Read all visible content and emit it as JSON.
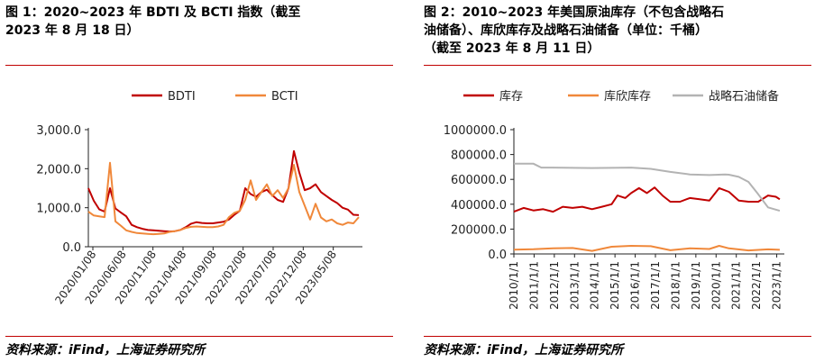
{
  "figures": [
    {
      "title": "图 1：2020~2023 年 BDTI 及 BCTI 指数（截至\n2023 年 8 月 18 日）",
      "source": "资料来源：iFind，上海证券研究所"
    },
    {
      "title": "图 2：2010~2023 年美国原油库存（不包含战略石\n油储备）、库欣库存及战略石油储备（单位：千桶）\n（截至 2023 年 8 月 11 日）",
      "source": "资料来源：iFind，上海证券研究所"
    }
  ],
  "chart_data": [
    {
      "type": "line",
      "legend_position": "top",
      "ylim": [
        0,
        3000
      ],
      "yticks": [
        "0.0",
        "1,000.0",
        "2,000.0",
        "3,000.0"
      ],
      "xticks": [
        "2020/01/08",
        "2020/06/08",
        "2020/11/08",
        "2021/04/08",
        "2021/09/08",
        "2022/02/08",
        "2022/07/08",
        "2022/12/08",
        "2023/05/08"
      ],
      "series": [
        {
          "name": "BDTI",
          "color": "#c00000",
          "points": [
            [
              0,
              1500
            ],
            [
              1,
              1180
            ],
            [
              2,
              960
            ],
            [
              3,
              900
            ],
            [
              4,
              1500
            ],
            [
              5,
              980
            ],
            [
              6,
              880
            ],
            [
              7,
              780
            ],
            [
              8,
              560
            ],
            [
              9,
              500
            ],
            [
              10,
              460
            ],
            [
              11,
              430
            ],
            [
              12,
              420
            ],
            [
              13,
              410
            ],
            [
              14,
              400
            ],
            [
              15,
              390
            ],
            [
              16,
              400
            ],
            [
              17,
              430
            ],
            [
              18,
              500
            ],
            [
              19,
              590
            ],
            [
              20,
              630
            ],
            [
              21,
              610
            ],
            [
              22,
              600
            ],
            [
              23,
              600
            ],
            [
              24,
              620
            ],
            [
              25,
              640
            ],
            [
              26,
              700
            ],
            [
              27,
              820
            ],
            [
              28,
              920
            ],
            [
              29,
              1500
            ],
            [
              30,
              1350
            ],
            [
              31,
              1280
            ],
            [
              32,
              1400
            ],
            [
              33,
              1460
            ],
            [
              34,
              1320
            ],
            [
              35,
              1200
            ],
            [
              36,
              1150
            ],
            [
              37,
              1500
            ],
            [
              38,
              2450
            ],
            [
              39,
              1900
            ],
            [
              40,
              1450
            ],
            [
              41,
              1500
            ],
            [
              42,
              1600
            ],
            [
              43,
              1400
            ],
            [
              44,
              1300
            ],
            [
              45,
              1200
            ],
            [
              46,
              1120
            ],
            [
              47,
              1000
            ],
            [
              48,
              950
            ],
            [
              49,
              820
            ],
            [
              50,
              810
            ]
          ]
        },
        {
          "name": "BCTI",
          "color": "#f0883a",
          "points": [
            [
              0,
              900
            ],
            [
              1,
              800
            ],
            [
              2,
              780
            ],
            [
              3,
              760
            ],
            [
              4,
              2150
            ],
            [
              5,
              650
            ],
            [
              6,
              540
            ],
            [
              7,
              420
            ],
            [
              8,
              380
            ],
            [
              9,
              350
            ],
            [
              10,
              340
            ],
            [
              11,
              330
            ],
            [
              12,
              320
            ],
            [
              13,
              330
            ],
            [
              14,
              340
            ],
            [
              15,
              380
            ],
            [
              16,
              400
            ],
            [
              17,
              430
            ],
            [
              18,
              480
            ],
            [
              19,
              510
            ],
            [
              20,
              520
            ],
            [
              21,
              510
            ],
            [
              22,
              500
            ],
            [
              23,
              500
            ],
            [
              24,
              520
            ],
            [
              25,
              560
            ],
            [
              26,
              760
            ],
            [
              27,
              870
            ],
            [
              28,
              920
            ],
            [
              29,
              1200
            ],
            [
              30,
              1700
            ],
            [
              31,
              1200
            ],
            [
              32,
              1400
            ],
            [
              33,
              1600
            ],
            [
              34,
              1300
            ],
            [
              35,
              1450
            ],
            [
              36,
              1250
            ],
            [
              37,
              1500
            ],
            [
              38,
              2100
            ],
            [
              39,
              1400
            ],
            [
              40,
              1050
            ],
            [
              41,
              700
            ],
            [
              42,
              1100
            ],
            [
              43,
              750
            ],
            [
              44,
              650
            ],
            [
              45,
              700
            ],
            [
              46,
              600
            ],
            [
              47,
              560
            ],
            [
              48,
              620
            ],
            [
              49,
              600
            ],
            [
              50,
              760
            ]
          ]
        }
      ]
    },
    {
      "type": "line",
      "legend_position": "top",
      "ylim": [
        0,
        1000000
      ],
      "yticks": [
        "0.0",
        "200000.0",
        "400000.0",
        "600000.0",
        "800000.0",
        "1000000.0"
      ],
      "xticks": [
        "2010/1/1",
        "2011/1/1",
        "2012/1/1",
        "2013/1/1",
        "2014/1/1",
        "2015/1/1",
        "2016/1/1",
        "2017/1/1",
        "2018/1/1",
        "2019/1/1",
        "2020/1/1",
        "2021/1/1",
        "2022/1/1",
        "2023/1/1"
      ],
      "series": [
        {
          "name": "库存",
          "color": "#c00000",
          "points": [
            [
              2010.0,
              340000
            ],
            [
              2010.5,
              370000
            ],
            [
              2011.0,
              350000
            ],
            [
              2011.5,
              360000
            ],
            [
              2012.0,
              340000
            ],
            [
              2012.5,
              380000
            ],
            [
              2013.0,
              370000
            ],
            [
              2013.5,
              380000
            ],
            [
              2014.0,
              360000
            ],
            [
              2014.5,
              380000
            ],
            [
              2015.0,
              400000
            ],
            [
              2015.3,
              470000
            ],
            [
              2015.7,
              450000
            ],
            [
              2016.0,
              490000
            ],
            [
              2016.4,
              530000
            ],
            [
              2016.8,
              490000
            ],
            [
              2017.2,
              535000
            ],
            [
              2017.6,
              470000
            ],
            [
              2018.0,
              420000
            ],
            [
              2018.5,
              420000
            ],
            [
              2019.0,
              450000
            ],
            [
              2019.5,
              440000
            ],
            [
              2020.0,
              430000
            ],
            [
              2020.5,
              530000
            ],
            [
              2021.0,
              500000
            ],
            [
              2021.5,
              430000
            ],
            [
              2022.0,
              420000
            ],
            [
              2022.5,
              420000
            ],
            [
              2023.0,
              470000
            ],
            [
              2023.4,
              460000
            ],
            [
              2023.6,
              440000
            ]
          ]
        },
        {
          "name": "库欣库存",
          "color": "#f0883a",
          "points": [
            [
              2010.0,
              35000
            ],
            [
              2011.0,
              38000
            ],
            [
              2012.0,
              45000
            ],
            [
              2013.0,
              48000
            ],
            [
              2014.0,
              25000
            ],
            [
              2015.0,
              58000
            ],
            [
              2016.0,
              65000
            ],
            [
              2017.0,
              62000
            ],
            [
              2018.0,
              30000
            ],
            [
              2019.0,
              45000
            ],
            [
              2020.0,
              40000
            ],
            [
              2020.5,
              65000
            ],
            [
              2021.0,
              45000
            ],
            [
              2022.0,
              28000
            ],
            [
              2023.0,
              37000
            ],
            [
              2023.6,
              33000
            ]
          ]
        },
        {
          "name": "战略石油储备",
          "color": "#b3b3b3",
          "points": [
            [
              2010.0,
              726000
            ],
            [
              2011.0,
              726000
            ],
            [
              2011.4,
              695000
            ],
            [
              2012.0,
              695000
            ],
            [
              2014.0,
              691000
            ],
            [
              2016.0,
              695000
            ],
            [
              2017.0,
              685000
            ],
            [
              2018.0,
              660000
            ],
            [
              2019.0,
              640000
            ],
            [
              2020.0,
              635000
            ],
            [
              2020.8,
              640000
            ],
            [
              2021.0,
              638000
            ],
            [
              2021.5,
              620000
            ],
            [
              2022.0,
              580000
            ],
            [
              2022.5,
              480000
            ],
            [
              2023.0,
              375000
            ],
            [
              2023.6,
              347000
            ]
          ]
        }
      ]
    }
  ]
}
